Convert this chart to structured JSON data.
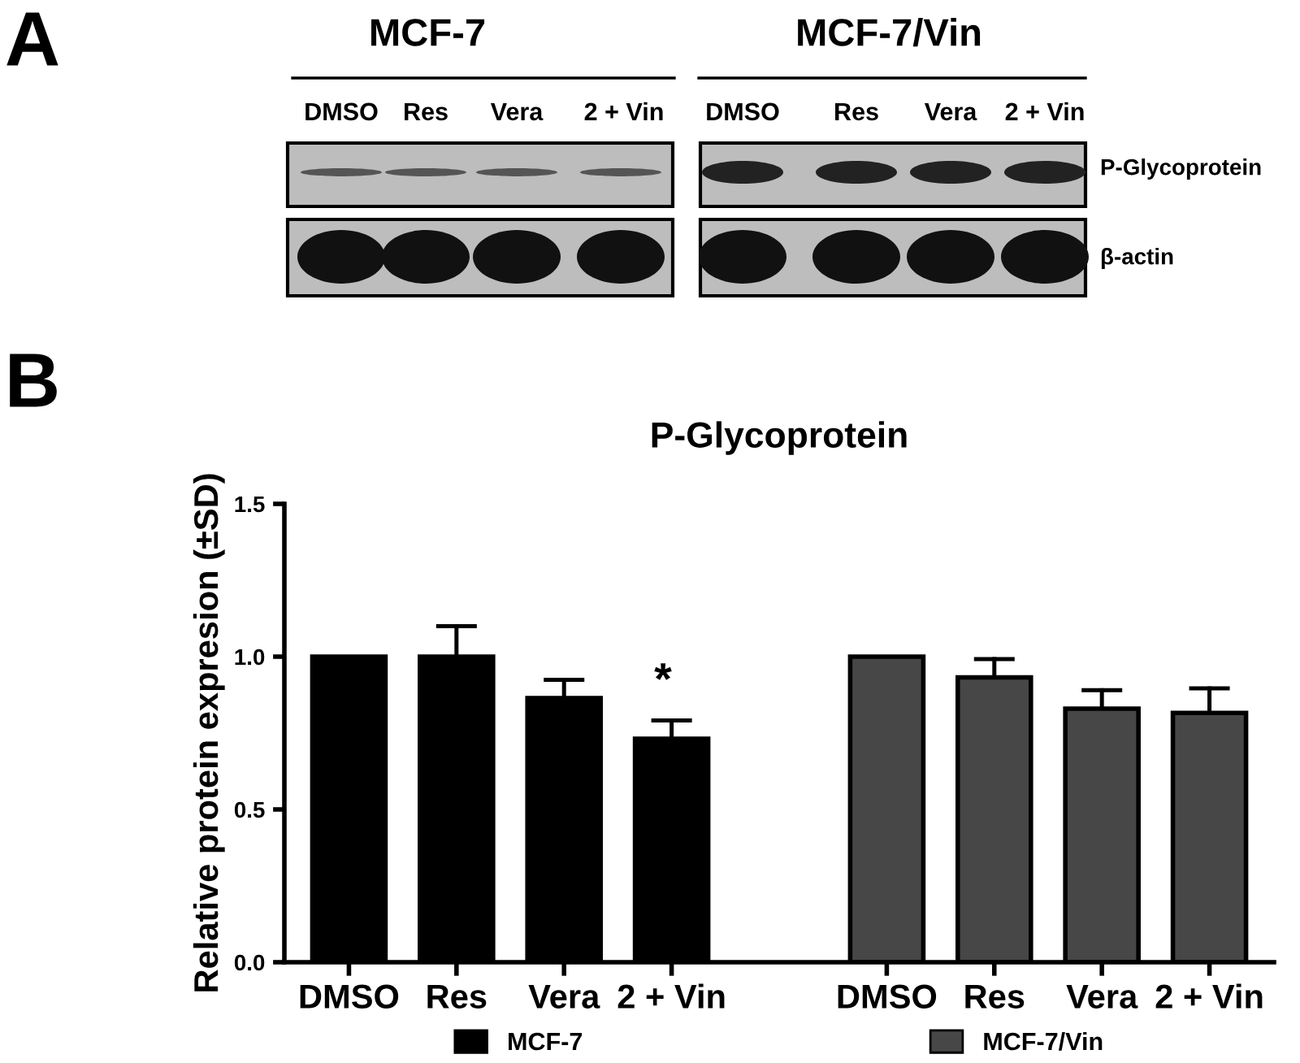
{
  "chart_data": {
    "type": "bar",
    "title": "P-Glycoprotein",
    "ylabel": "Relative protein expresion (±SD)",
    "categories": [
      "DMSO",
      "Res",
      "Vera",
      "2 + Vin",
      null,
      "DMSO",
      "Res",
      "Vera",
      "2 + Vin"
    ],
    "series": [
      {
        "name": "MCF-7",
        "color": "#000000",
        "values": [
          1.0,
          1.0,
          0.864,
          0.731,
          null,
          null,
          null,
          null,
          null
        ],
        "errors": [
          null,
          0.1,
          0.06,
          0.06,
          null,
          null,
          null,
          null,
          null
        ]
      },
      {
        "name": "MCF-7/Vin",
        "color": "#474747",
        "values": [
          null,
          null,
          null,
          null,
          null,
          1.0,
          0.932,
          0.83,
          0.816
        ],
        "errors": [
          null,
          null,
          null,
          null,
          null,
          null,
          0.06,
          0.06,
          0.08
        ]
      }
    ],
    "ylim": [
      0,
      1.5
    ],
    "yticks": [
      {
        "value": 0,
        "label": "0.0"
      },
      {
        "value": 0.5,
        "label": "0.5"
      },
      {
        "value": 1,
        "label": "1.0"
      },
      {
        "value": 1.5,
        "label": "1.5"
      }
    ],
    "grid": false,
    "legend": "bottom",
    "annotations": [
      "A",
      "MCF-7",
      "MCF-7/Vin",
      "DMSO",
      "Res",
      "Vera",
      "2 + Vin",
      "DMSO",
      "Res",
      "Vera",
      "2 + Vin",
      "P-Glycoprotein",
      "β-actin",
      "B",
      "*"
    ]
  }
}
